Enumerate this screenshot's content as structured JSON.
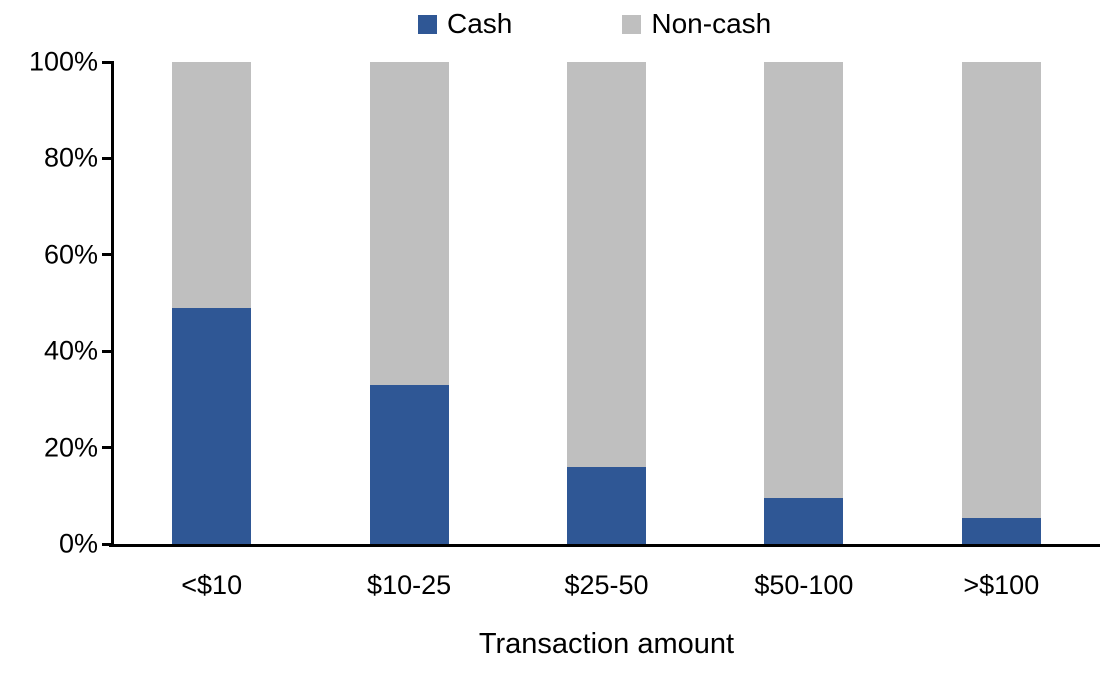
{
  "chart_data": {
    "type": "bar",
    "stacked": true,
    "orientation": "vertical",
    "title": "",
    "xlabel": "Transaction amount",
    "ylabel": "",
    "categories": [
      "<$10",
      "$10-25",
      "$25-50",
      "$50-100",
      ">$100"
    ],
    "series": [
      {
        "name": "Cash",
        "color": "#2F5795",
        "values": [
          49,
          33,
          16,
          9.5,
          5.5
        ]
      },
      {
        "name": "Non-cash",
        "color": "#BFBFBF",
        "values": [
          51,
          67,
          84,
          90.5,
          94.5
        ]
      }
    ],
    "ylim": [
      0,
      100
    ],
    "y_tick_values": [
      0,
      20,
      40,
      60,
      80,
      100
    ],
    "y_tick_labels": [
      "0%",
      "20%",
      "40%",
      "60%",
      "80%",
      "100%"
    ],
    "legend_position": "top-center",
    "grid": false,
    "axis_color": "#000000",
    "text_color": "#000000",
    "background_color": "#FFFFFF"
  }
}
